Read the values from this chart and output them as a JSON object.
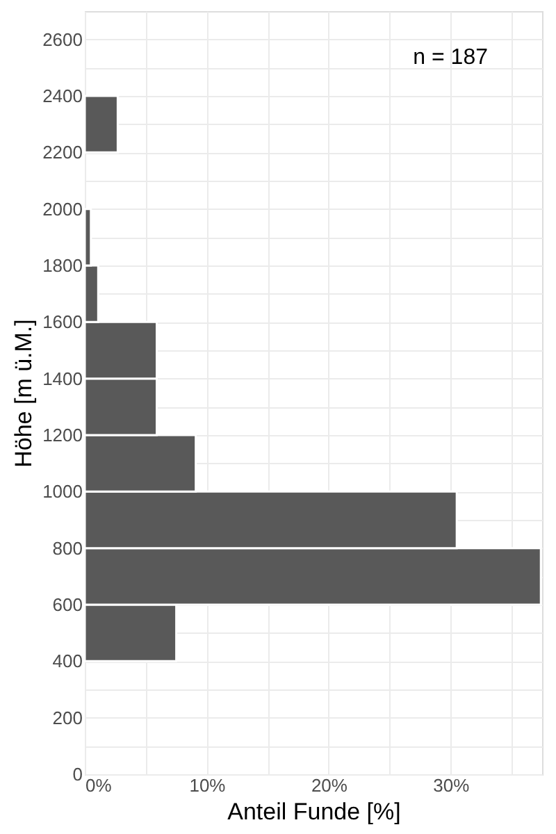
{
  "chart_data": {
    "type": "histogram",
    "orientation": "horizontal",
    "bins": [
      400,
      600,
      800,
      1000,
      1200,
      1400,
      1600,
      1800,
      2000,
      2200,
      2400
    ],
    "values": [
      7.5,
      37.4,
      30.5,
      9.1,
      5.9,
      5.9,
      1.1,
      0.5,
      0,
      2.7
    ],
    "color": "#595959",
    "xlabel": "Anteil Funde [%]",
    "ylabel": "Höhe [m ü.M.]",
    "xlim": [
      0,
      37.5
    ],
    "xticks": [
      {
        "value": 0,
        "label": "0%"
      },
      {
        "value": 5,
        "label": null
      },
      {
        "value": 10,
        "label": "10%"
      },
      {
        "value": 15,
        "label": null
      },
      {
        "value": 20,
        "label": "20%"
      },
      {
        "value": 25,
        "label": null
      },
      {
        "value": 30,
        "label": "30%"
      },
      {
        "value": 35,
        "label": null
      }
    ],
    "ylim": [
      0,
      2700
    ],
    "yticks": [
      0,
      {
        "value": 100,
        "label": null
      },
      200,
      {
        "value": 300,
        "label": null
      },
      400,
      {
        "value": 500,
        "label": null
      },
      600,
      {
        "value": 700,
        "label": null
      },
      800,
      {
        "value": 900,
        "label": null
      },
      1000,
      {
        "value": 1100,
        "label": null
      },
      1200,
      {
        "value": 1300,
        "label": null
      },
      1400,
      {
        "value": 1500,
        "label": null
      },
      1600,
      {
        "value": 1700,
        "label": null
      },
      1800,
      {
        "value": 1900,
        "label": null
      },
      2000,
      {
        "value": 2100,
        "label": null
      },
      2200,
      {
        "value": 2300,
        "label": null
      },
      2400,
      {
        "value": 2500,
        "label": null
      },
      2600
    ],
    "grid": true,
    "annotations": [
      "n = 187"
    ]
  }
}
